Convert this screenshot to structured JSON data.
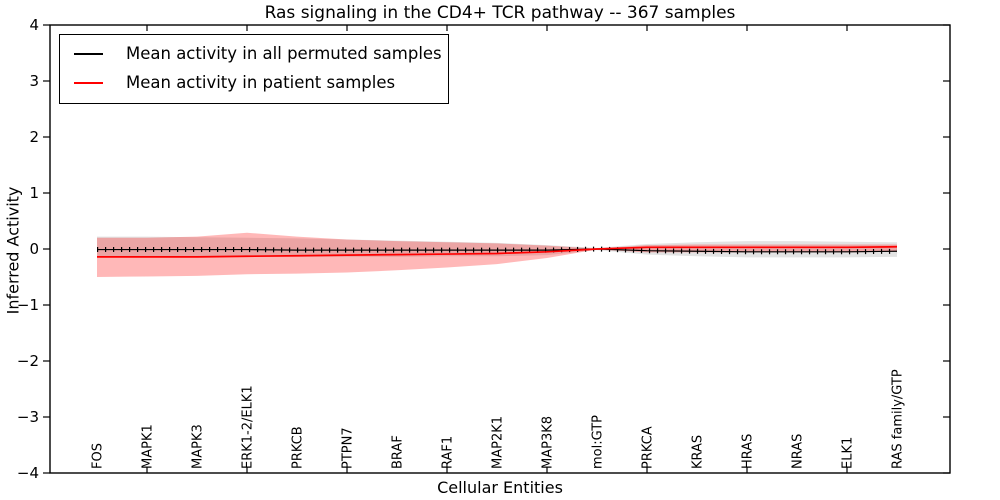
{
  "title": "Ras signaling in the CD4+ TCR pathway -- 367 samples",
  "xlabel": "Cellular Entities",
  "ylabel": "Inferred Activity",
  "legend": {
    "items": [
      {
        "label": "Mean activity in all permuted samples",
        "color": "#000000"
      },
      {
        "label": "Mean activity in patient samples",
        "color": "#ff0000"
      }
    ]
  },
  "chart_data": {
    "type": "line",
    "title": "Ras signaling in the CD4+ TCR pathway -- 367 samples",
    "xlabel": "Cellular Entities",
    "ylabel": "Inferred Activity",
    "ylim": [
      -4,
      4
    ],
    "grid": false,
    "legend_position": "upper left",
    "categories": [
      "FOS",
      "MAPK1",
      "MAPK3",
      "ERK1-2/ELK1",
      "PRKCB",
      "PTPN7",
      "BRAF",
      "RAF1",
      "MAP2K1",
      "MAP3K8",
      "mol:GTP",
      "PRKCA",
      "KRAS",
      "HRAS",
      "NRAS",
      "ELK1",
      "RAS family/GTP"
    ],
    "yticks": {
      "values": [
        4,
        3,
        2,
        1,
        0,
        -1,
        -2,
        -3,
        -4
      ],
      "labels": [
        "4",
        "3",
        "2",
        "1",
        "0",
        "−1",
        "−2",
        "−3",
        "−4"
      ]
    },
    "xtick_mark_indices": [
      1,
      3,
      5,
      7,
      9,
      11,
      13,
      15
    ],
    "series": [
      {
        "name": "Mean activity in all permuted samples",
        "color": "#000000",
        "style": "line-with-tick-markers",
        "values": [
          -0.01,
          -0.01,
          -0.01,
          -0.01,
          -0.02,
          -0.02,
          -0.02,
          -0.02,
          -0.02,
          -0.02,
          0.0,
          -0.03,
          -0.04,
          -0.05,
          -0.05,
          -0.05,
          -0.04
        ]
      },
      {
        "name": "Mean activity in patient samples",
        "color": "#ff0000",
        "style": "line",
        "values": [
          -0.14,
          -0.14,
          -0.14,
          -0.13,
          -0.12,
          -0.11,
          -0.1,
          -0.09,
          -0.08,
          -0.05,
          0.0,
          0.03,
          0.03,
          0.03,
          0.03,
          0.03,
          0.04
        ]
      }
    ],
    "bands": [
      {
        "name": "permuted-samples-std-band",
        "color": "rgba(128,128,128,0.22)",
        "upper": [
          0.22,
          0.22,
          0.21,
          0.2,
          0.19,
          0.17,
          0.15,
          0.13,
          0.11,
          0.07,
          0.02,
          0.09,
          0.12,
          0.14,
          0.14,
          0.13,
          0.12
        ],
        "lower": [
          -0.13,
          -0.13,
          -0.13,
          -0.14,
          -0.14,
          -0.14,
          -0.14,
          -0.13,
          -0.13,
          -0.11,
          -0.02,
          -0.1,
          -0.13,
          -0.15,
          -0.15,
          -0.15,
          -0.14
        ]
      },
      {
        "name": "patient-samples-std-band",
        "color": "rgba(255,0,0,0.28)",
        "upper": [
          0.2,
          0.2,
          0.22,
          0.29,
          0.22,
          0.17,
          0.14,
          0.12,
          0.1,
          0.06,
          0.01,
          0.07,
          0.08,
          0.08,
          0.08,
          0.08,
          0.08
        ],
        "lower": [
          -0.5,
          -0.49,
          -0.48,
          -0.45,
          -0.44,
          -0.42,
          -0.38,
          -0.33,
          -0.27,
          -0.16,
          -0.01,
          -0.06,
          -0.06,
          -0.06,
          -0.06,
          -0.06,
          -0.05
        ]
      }
    ]
  }
}
